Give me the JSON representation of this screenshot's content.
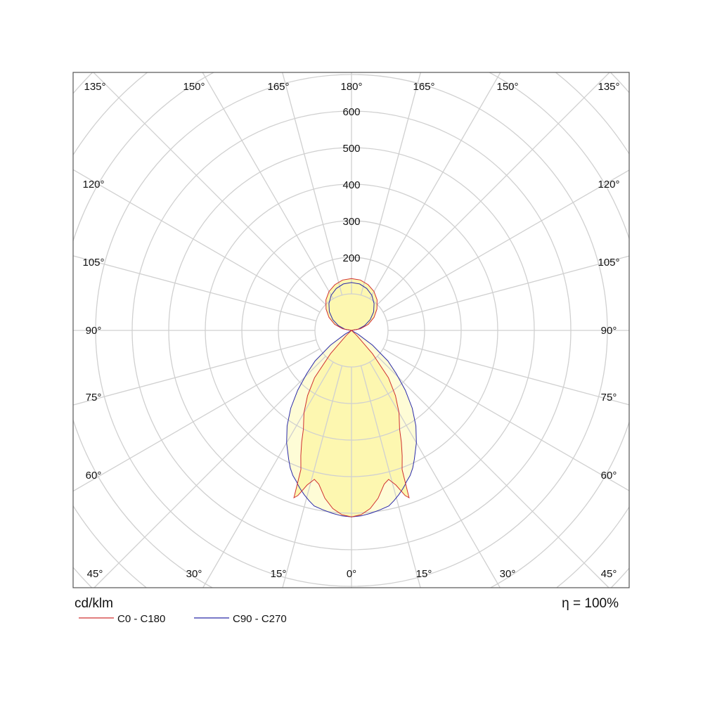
{
  "chart_data": {
    "type": "polar",
    "unit_label": "cd/klm",
    "efficiency_label": "η = 100%",
    "radial_tick_labels": [
      "200",
      "300",
      "400",
      "500",
      "600"
    ],
    "radial_ticks": [
      200,
      300,
      400,
      500,
      600
    ],
    "radial_grid_step": 100,
    "angular_grid_step_deg": 15,
    "grid": true,
    "angle_labels": {
      "top": [
        "135°",
        "150°",
        "165°",
        "180°",
        "165°",
        "150°",
        "135°"
      ],
      "bottom": [
        "45°",
        "30°",
        "15°",
        "0°",
        "15°",
        "30°",
        "45°"
      ],
      "left": [
        "120°",
        "105°",
        "90°",
        "75°",
        "60°"
      ],
      "right": [
        "120°",
        "105°",
        "90°",
        "75°",
        "60°"
      ]
    },
    "gamma_deg": [
      0,
      3,
      6,
      9,
      12,
      14,
      16,
      18,
      19,
      19.5,
      20,
      22,
      24,
      26,
      30,
      34,
      38,
      42,
      46,
      50,
      55,
      60,
      70,
      80,
      90,
      100,
      110,
      120,
      130,
      140,
      150,
      160,
      170,
      180
    ],
    "series": [
      {
        "name": "C0 - C180",
        "color": "#d03030",
        "fill": "#fdf7b0",
        "values": [
          510,
          505,
          490,
          465,
          430,
          420,
          440,
          475,
          484,
          440,
          405,
          370,
          335,
          300,
          260,
          215,
          164,
          86,
          20,
          0,
          0,
          0,
          0,
          0,
          0,
          25,
          49,
          71,
          91,
          109,
          123,
          133,
          140,
          142
        ]
      },
      {
        "name": "C90 - C270",
        "color": "#2a2aa8",
        "fill": "#fefcd6",
        "values": [
          510,
          508,
          503,
          497,
          491,
          480,
          468,
          455,
          448,
          444,
          440,
          428,
          412,
          392,
          355,
          315,
          270,
          220,
          170,
          130,
          70,
          20,
          0,
          0,
          0,
          18,
          38,
          59,
          79,
          96,
          111,
          122,
          129,
          131
        ]
      }
    ],
    "legend_position": "bottom-left"
  }
}
